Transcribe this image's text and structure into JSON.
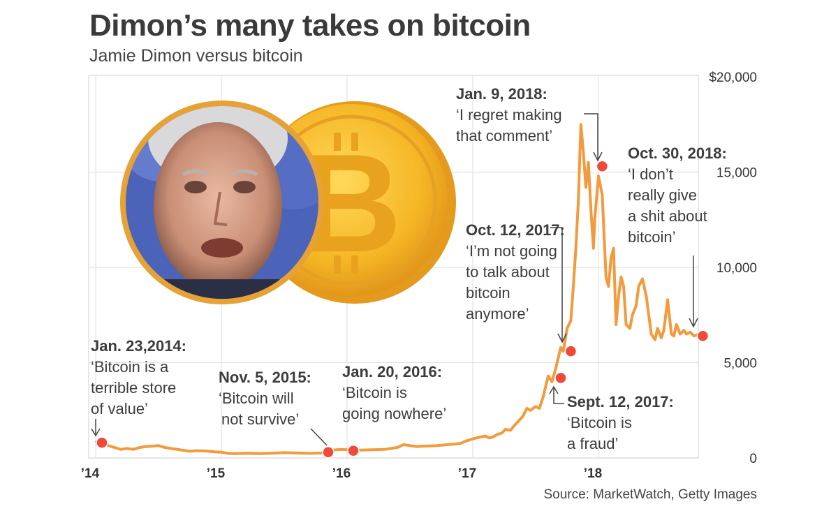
{
  "title": "Dimon’s many takes on bitcoin",
  "subtitle": "Jamie Dimon versus bitcoin",
  "source": "Source: MarketWatch, Getty Images",
  "colors": {
    "line": "#f29a3c",
    "marker": "#f0493a",
    "grid": "#dddddd",
    "coin": "#f5b625",
    "photo_ring": "#e6a234"
  },
  "chart_data": {
    "type": "line",
    "title": "",
    "xlabel": "",
    "ylabel": "",
    "x_range": [
      2014.0,
      2018.85
    ],
    "ylim": [
      0,
      20000
    ],
    "grid": true,
    "y_ticks": [
      {
        "value": 20000,
        "label": "$20,000"
      },
      {
        "value": 15000,
        "label": "15,000"
      },
      {
        "value": 10000,
        "label": "10,000"
      },
      {
        "value": 5000,
        "label": "5,000"
      },
      {
        "value": 0,
        "label": "0"
      }
    ],
    "x_ticks": [
      {
        "value": 2014,
        "label": "’14"
      },
      {
        "value": 2015,
        "label": "’15"
      },
      {
        "value": 2016,
        "label": "’16"
      },
      {
        "value": 2017,
        "label": "’17"
      },
      {
        "value": 2018,
        "label": "’18"
      }
    ],
    "series": [
      {
        "x": [
          2014.0,
          2014.05,
          2014.1,
          2014.15,
          2014.2,
          2014.25,
          2014.3,
          2014.35,
          2014.4,
          2014.45,
          2014.5,
          2014.55,
          2014.6,
          2014.65,
          2014.7,
          2014.75,
          2014.8,
          2014.85,
          2014.9,
          2014.95,
          2015.0,
          2015.05,
          2015.1,
          2015.2,
          2015.3,
          2015.4,
          2015.5,
          2015.6,
          2015.7,
          2015.8,
          2015.85,
          2015.9,
          2015.95,
          2016.0,
          2016.05,
          2016.1,
          2016.2,
          2016.3,
          2016.4,
          2016.45,
          2016.5,
          2016.55,
          2016.6,
          2016.7,
          2016.8,
          2016.85,
          2016.9,
          2016.95,
          2017.0,
          2017.03,
          2017.06,
          2017.1,
          2017.13,
          2017.16,
          2017.2,
          2017.23,
          2017.26,
          2017.3,
          2017.33,
          2017.36,
          2017.4,
          2017.43,
          2017.46,
          2017.5,
          2017.53,
          2017.56,
          2017.6,
          2017.63,
          2017.66,
          2017.7,
          2017.72,
          2017.75,
          2017.78,
          2017.8,
          2017.82,
          2017.84,
          2017.86,
          2017.88,
          2017.9,
          2017.92,
          2017.94,
          2017.96,
          2017.97,
          2018.0,
          2018.03,
          2018.06,
          2018.08,
          2018.1,
          2018.12,
          2018.14,
          2018.16,
          2018.18,
          2018.2,
          2018.22,
          2018.25,
          2018.27,
          2018.3,
          2018.32,
          2018.35,
          2018.38,
          2018.4,
          2018.42,
          2018.45,
          2018.47,
          2018.5,
          2018.52,
          2018.55,
          2018.58,
          2018.6,
          2018.62,
          2018.65,
          2018.68,
          2018.7,
          2018.73,
          2018.76,
          2018.8,
          2018.83
        ],
        "y": [
          800,
          1000,
          650,
          550,
          450,
          500,
          450,
          550,
          600,
          620,
          650,
          550,
          500,
          450,
          400,
          350,
          380,
          370,
          350,
          320,
          300,
          250,
          230,
          250,
          230,
          250,
          280,
          260,
          240,
          260,
          370,
          420,
          450,
          430,
          400,
          410,
          430,
          450,
          550,
          700,
          650,
          600,
          620,
          640,
          700,
          730,
          760,
          900,
          1000,
          1050,
          1100,
          1150,
          1050,
          1100,
          1250,
          1300,
          1500,
          1450,
          1700,
          1900,
          2200,
          2600,
          2500,
          2700,
          2600,
          3200,
          4300,
          4000,
          4700,
          5800,
          5600,
          6800,
          7200,
          9000,
          11000,
          13500,
          17500,
          16000,
          14200,
          15500,
          13000,
          11000,
          12500,
          14800,
          13800,
          9500,
          9000,
          10500,
          11000,
          7000,
          8500,
          9500,
          9000,
          7000,
          6800,
          7500,
          8000,
          9000,
          9400,
          8500,
          7500,
          6500,
          6200,
          6800,
          6300,
          6700,
          8300,
          6500,
          6400,
          7000,
          6500,
          6700,
          6500,
          6600,
          6400,
          6500,
          6400
        ]
      }
    ],
    "annotations": [
      {
        "x": 2014.05,
        "y": 800,
        "date": "Jan. 23,2014:",
        "quote": [
          "‘Bitcoin is a",
          "terrible store",
          "of value’"
        ]
      },
      {
        "x": 2015.85,
        "y": 300,
        "date": "Nov. 5, 2015:",
        "quote": [
          "‘Bitcoin will",
          "not survive’"
        ]
      },
      {
        "x": 2016.05,
        "y": 380,
        "date": "Jan. 20, 2016:",
        "quote": [
          "‘Bitcoin is",
          "going nowhere’"
        ]
      },
      {
        "x": 2017.7,
        "y": 4200,
        "date": "Sept. 12, 2017:",
        "quote": [
          "‘Bitcoin is",
          "a fraud’"
        ]
      },
      {
        "x": 2017.78,
        "y": 5600,
        "date": "Oct. 12, 2017:",
        "quote": [
          "‘I’m not going",
          "to talk about",
          "bitcoin",
          "anymore’"
        ]
      },
      {
        "x": 2018.03,
        "y": 15300,
        "date": "Jan. 9, 2018:",
        "quote": [
          "‘I regret making",
          "that comment’"
        ]
      },
      {
        "x": 2018.83,
        "y": 6400,
        "date": "Oct. 30, 2018:",
        "quote": [
          "‘I don’t",
          "really give",
          "a shit about",
          "bitcoin’"
        ]
      }
    ]
  }
}
